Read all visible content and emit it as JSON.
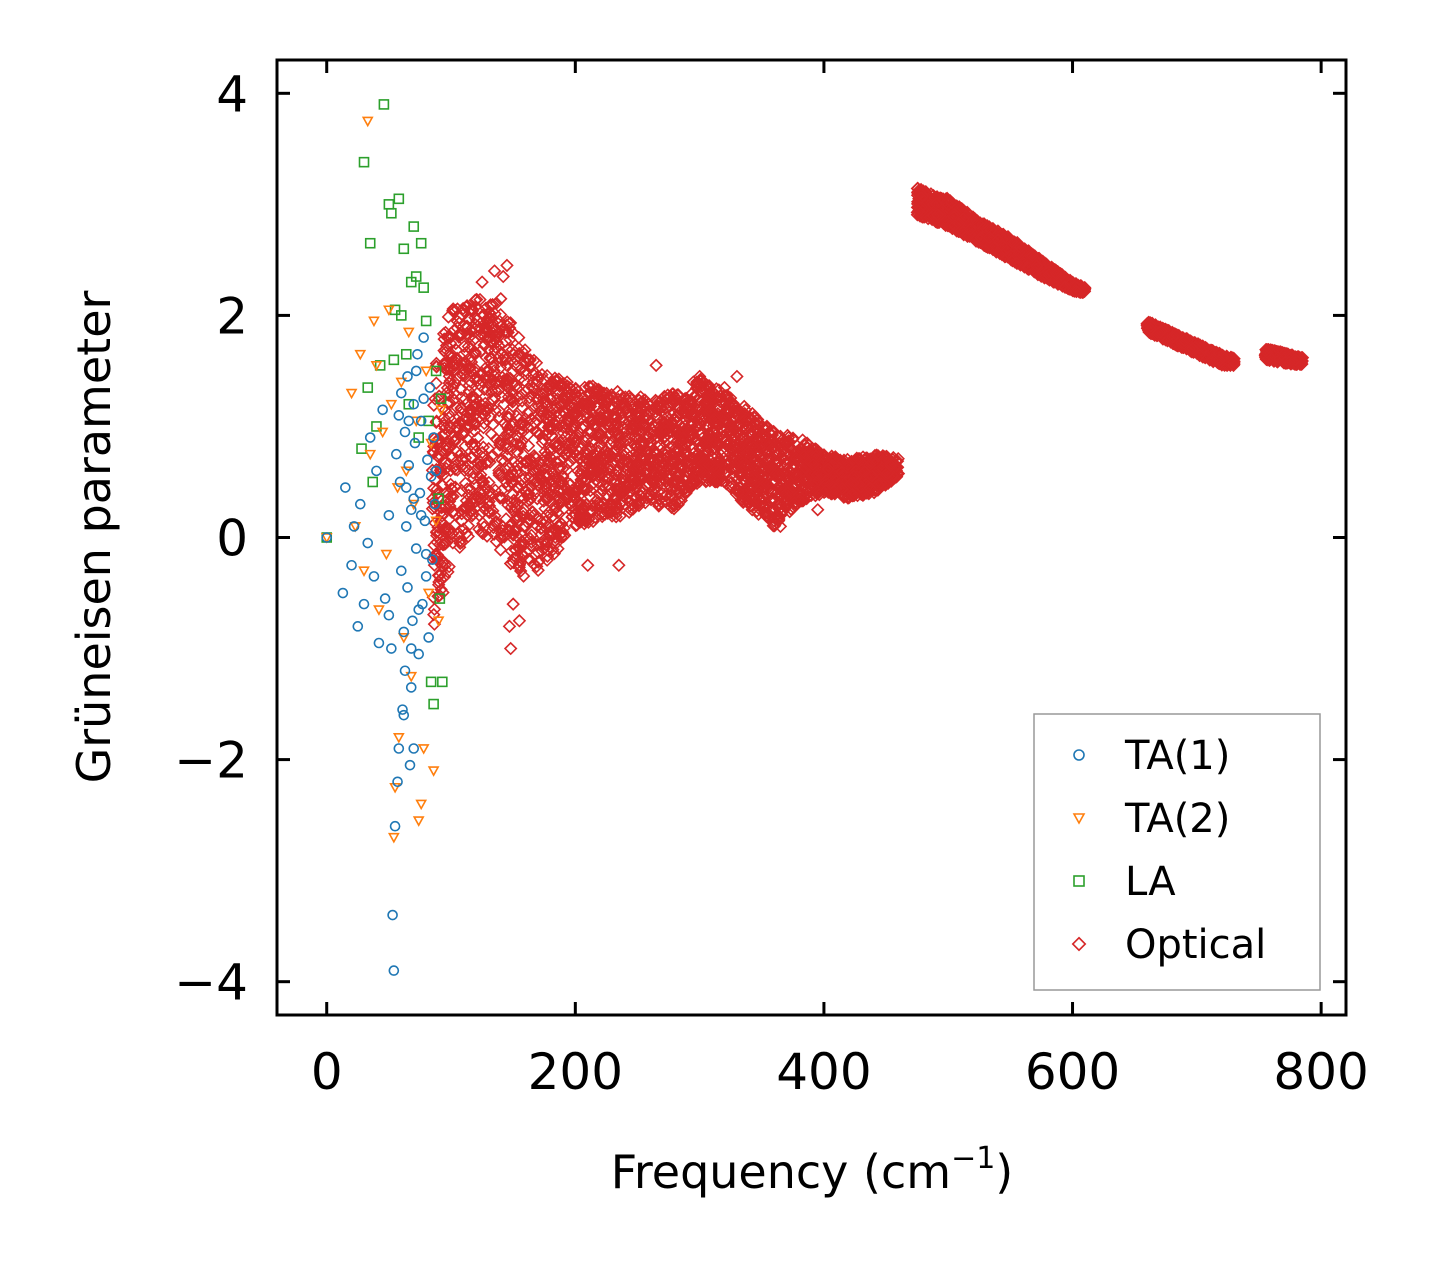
{
  "chart_data": {
    "type": "scatter",
    "title": "",
    "xlabel": "Frequency (cm",
    "xlabel_sup": "−1",
    "xlabel_end": ")",
    "ylabel": "Grüneisen parameter",
    "xlim": [
      -40,
      820
    ],
    "ylim": [
      -4.3,
      4.3
    ],
    "xticks": [
      0,
      200,
      400,
      600,
      800
    ],
    "yticks": [
      -4,
      -2,
      0,
      2,
      4
    ],
    "xtick_labels": [
      "0",
      "200",
      "400",
      "600",
      "800"
    ],
    "ytick_labels": [
      "−4",
      "−2",
      "0",
      "2",
      "4"
    ],
    "legend_position": "lower-right",
    "grid": false,
    "series": [
      {
        "name": "TA(1)",
        "marker": "circle",
        "color": "#1f77b4",
        "x": [
          0,
          13,
          15,
          20,
          22,
          25,
          27,
          30,
          33,
          35,
          38,
          40,
          42,
          45,
          47,
          50,
          50,
          52,
          53,
          54,
          55,
          56,
          57,
          58,
          58,
          59,
          60,
          60,
          61,
          62,
          63,
          63,
          64,
          65,
          65,
          66,
          67,
          68,
          68,
          69,
          70,
          70,
          71,
          72,
          73,
          74,
          75,
          76,
          77,
          78,
          79,
          80,
          81,
          82,
          83,
          84,
          85,
          86,
          87,
          88,
          62,
          64,
          66,
          68,
          70,
          72,
          74,
          76,
          78,
          80
        ],
        "y": [
          0,
          -0.5,
          0.45,
          -0.25,
          0.1,
          -0.8,
          0.3,
          -0.6,
          -0.05,
          0.9,
          -0.35,
          0.6,
          -0.95,
          1.15,
          -0.55,
          -0.7,
          0.2,
          -1.0,
          -3.4,
          -3.9,
          -2.6,
          0.75,
          -2.2,
          -1.9,
          1.1,
          0.5,
          -0.3,
          1.3,
          -1.55,
          -0.85,
          0.95,
          -1.2,
          0.1,
          1.45,
          -0.45,
          0.65,
          -2.05,
          -1.35,
          0.25,
          -0.75,
          1.2,
          -1.9,
          0.85,
          -0.1,
          1.65,
          -1.05,
          0.4,
          1.05,
          -0.6,
          1.8,
          0.15,
          -0.35,
          0.7,
          -0.9,
          1.35,
          0.55,
          -0.2,
          0.9,
          0.3,
          0.6,
          -1.6,
          0.45,
          1.05,
          -1.0,
          0.35,
          1.5,
          -0.65,
          0.2,
          1.25,
          -0.15
        ]
      },
      {
        "name": "TA(2)",
        "marker": "triangle-down",
        "color": "#ff7f0e",
        "x": [
          0,
          20,
          23,
          27,
          30,
          33,
          35,
          38,
          40,
          42,
          45,
          48,
          50,
          52,
          54,
          55,
          57,
          58,
          60,
          62,
          64,
          66,
          68,
          70,
          72,
          74,
          76,
          78,
          80,
          82,
          84,
          86,
          88,
          90,
          92
        ],
        "y": [
          0,
          1.3,
          0.1,
          1.65,
          -0.3,
          3.75,
          0.75,
          1.95,
          1.55,
          -0.65,
          0.95,
          -0.15,
          2.05,
          1.2,
          -2.7,
          -2.25,
          0.45,
          -1.8,
          1.4,
          -0.9,
          0.6,
          1.85,
          -1.25,
          0.3,
          1.05,
          -2.55,
          -2.4,
          -1.9,
          1.5,
          -0.5,
          0.85,
          -2.1,
          0.15,
          -0.75,
          1.15
        ]
      },
      {
        "name": "LA",
        "marker": "square",
        "color": "#2ca02c",
        "x": [
          0,
          28,
          30,
          33,
          35,
          37,
          40,
          43,
          46,
          50,
          52,
          54,
          55,
          58,
          60,
          62,
          64,
          66,
          68,
          70,
          72,
          74,
          76,
          78,
          80,
          82,
          84,
          86,
          88,
          90,
          91,
          92,
          93
        ],
        "y": [
          0,
          0.8,
          3.38,
          1.35,
          2.65,
          0.5,
          1.0,
          1.55,
          3.9,
          3.0,
          2.92,
          1.6,
          2.05,
          3.05,
          2.0,
          2.6,
          1.65,
          1.2,
          2.3,
          2.8,
          2.35,
          0.9,
          2.65,
          2.25,
          1.95,
          1.05,
          -1.3,
          -1.5,
          1.5,
          0.35,
          -0.55,
          1.25,
          -1.3
        ]
      },
      {
        "name": "Optical",
        "marker": "diamond",
        "color": "#d62728",
        "bands": [
          {
            "x": [
              85,
              100,
              120,
              140,
              160,
              180,
              200,
              220,
              240,
              260,
              280,
              290,
              300,
              320,
              340,
              360,
              380,
              400,
              420,
              440,
              460
            ],
            "ymin": [
              -0.9,
              -0.2,
              0.1,
              -0.15,
              -0.4,
              -0.2,
              0.1,
              0.15,
              0.2,
              0.3,
              0.25,
              0.4,
              0.5,
              0.5,
              0.25,
              0.1,
              0.3,
              0.4,
              0.35,
              0.4,
              0.55
            ],
            "ymax": [
              1.6,
              2.05,
              2.2,
              2.1,
              1.7,
              1.45,
              1.4,
              1.35,
              1.3,
              1.25,
              1.3,
              1.25,
              1.45,
              1.3,
              1.15,
              0.95,
              0.9,
              0.75,
              0.7,
              0.75,
              0.72
            ]
          },
          {
            "x": [
              475,
              500,
              525,
              550,
              575,
              600,
              610
            ],
            "ymin": [
              2.9,
              2.8,
              2.65,
              2.5,
              2.35,
              2.22,
              2.2
            ],
            "ymax": [
              3.15,
              3.05,
              2.85,
              2.7,
              2.5,
              2.3,
              2.25
            ]
          },
          {
            "x": [
              660,
              680,
              700,
              720,
              730
            ],
            "ymin": [
              1.85,
              1.75,
              1.65,
              1.55,
              1.55
            ],
            "ymax": [
              1.95,
              1.85,
              1.75,
              1.65,
              1.62
            ]
          },
          {
            "x": [
              755,
              765,
              775,
              785
            ],
            "ymin": [
              1.6,
              1.58,
              1.56,
              1.56
            ],
            "ymax": [
              1.7,
              1.68,
              1.65,
              1.62
            ]
          }
        ],
        "x": [
          125,
          135,
          140,
          142,
          145,
          147,
          148,
          150,
          155,
          160,
          170,
          185,
          200,
          210,
          235,
          265,
          295,
          300,
          320,
          330,
          365,
          395
        ],
        "y": [
          2.3,
          2.4,
          2.15,
          2.35,
          2.45,
          -0.8,
          -1.0,
          -0.6,
          -0.75,
          1.5,
          1.45,
          1.4,
          1.3,
          -0.25,
          -0.25,
          1.55,
          1.4,
          1.45,
          1.35,
          1.45,
          0.1,
          0.25
        ]
      }
    ]
  }
}
